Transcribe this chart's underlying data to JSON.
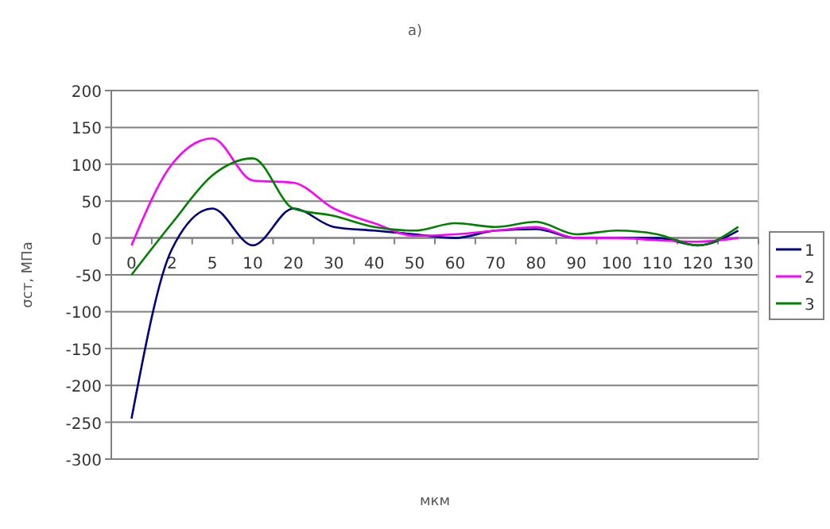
{
  "chart_data": {
    "type": "line",
    "title": "а)",
    "xlabel": "мкм",
    "ylabel": "σст, МПа",
    "categories": [
      "0",
      "2",
      "5",
      "10",
      "20",
      "30",
      "40",
      "50",
      "60",
      "70",
      "80",
      "90",
      "100",
      "110",
      "120",
      "130"
    ],
    "series": [
      {
        "name": "1",
        "color": "#000080",
        "values": [
          -245,
          -15,
          40,
          -10,
          40,
          15,
          10,
          5,
          0,
          10,
          12,
          0,
          0,
          0,
          -10,
          10
        ]
      },
      {
        "name": "2",
        "color": "#ff00ff",
        "values": [
          -10,
          100,
          135,
          78,
          75,
          40,
          20,
          3,
          5,
          10,
          15,
          0,
          0,
          -3,
          -5,
          0
        ]
      },
      {
        "name": "3",
        "color": "#008000",
        "values": [
          -50,
          20,
          85,
          108,
          40,
          30,
          15,
          10,
          20,
          15,
          22,
          5,
          10,
          5,
          -10,
          15
        ]
      }
    ],
    "ylim": [
      -300,
      200
    ],
    "yticks": [
      -300,
      -250,
      -200,
      -150,
      -100,
      -50,
      0,
      50,
      100,
      150,
      200
    ],
    "grid": "y",
    "legend": "right",
    "marker": "none",
    "line_style": "solid"
  }
}
